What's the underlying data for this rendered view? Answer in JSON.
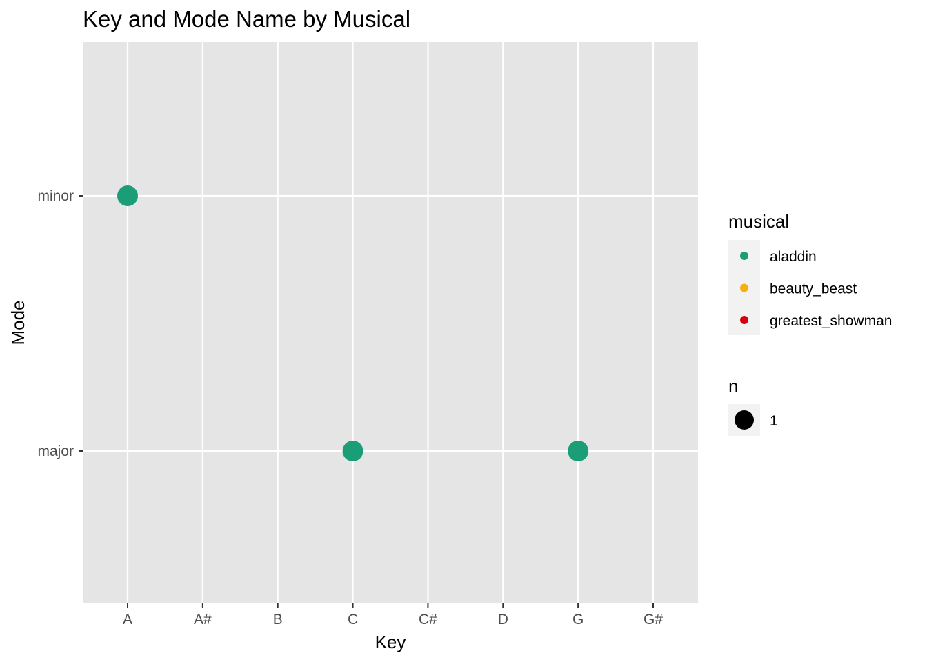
{
  "chart_data": {
    "type": "scatter",
    "title": "Key and Mode Name by Musical",
    "xlabel": "Key",
    "ylabel": "Mode",
    "x_categories": [
      "A",
      "A#",
      "B",
      "C",
      "C#",
      "D",
      "G",
      "G#"
    ],
    "y_categories": [
      "major",
      "minor"
    ],
    "grid": true,
    "background": "#e5e5e5",
    "legend_position": "right",
    "series": [
      {
        "name": "aladdin",
        "color": "#1b9e77",
        "points": [
          {
            "x": "A",
            "y": "minor",
            "n": 1
          },
          {
            "x": "C",
            "y": "major",
            "n": 1
          },
          {
            "x": "G",
            "y": "major",
            "n": 1
          }
        ]
      },
      {
        "name": "beauty_beast",
        "color": "#f5b00b",
        "points": []
      },
      {
        "name": "greatest_showman",
        "color": "#d7000f",
        "points": []
      }
    ],
    "legend_color": {
      "title": "musical",
      "entries": [
        "aladdin",
        "beauty_beast",
        "greatest_showman"
      ]
    },
    "legend_size": {
      "title": "n",
      "entries": [
        "1"
      ]
    }
  }
}
